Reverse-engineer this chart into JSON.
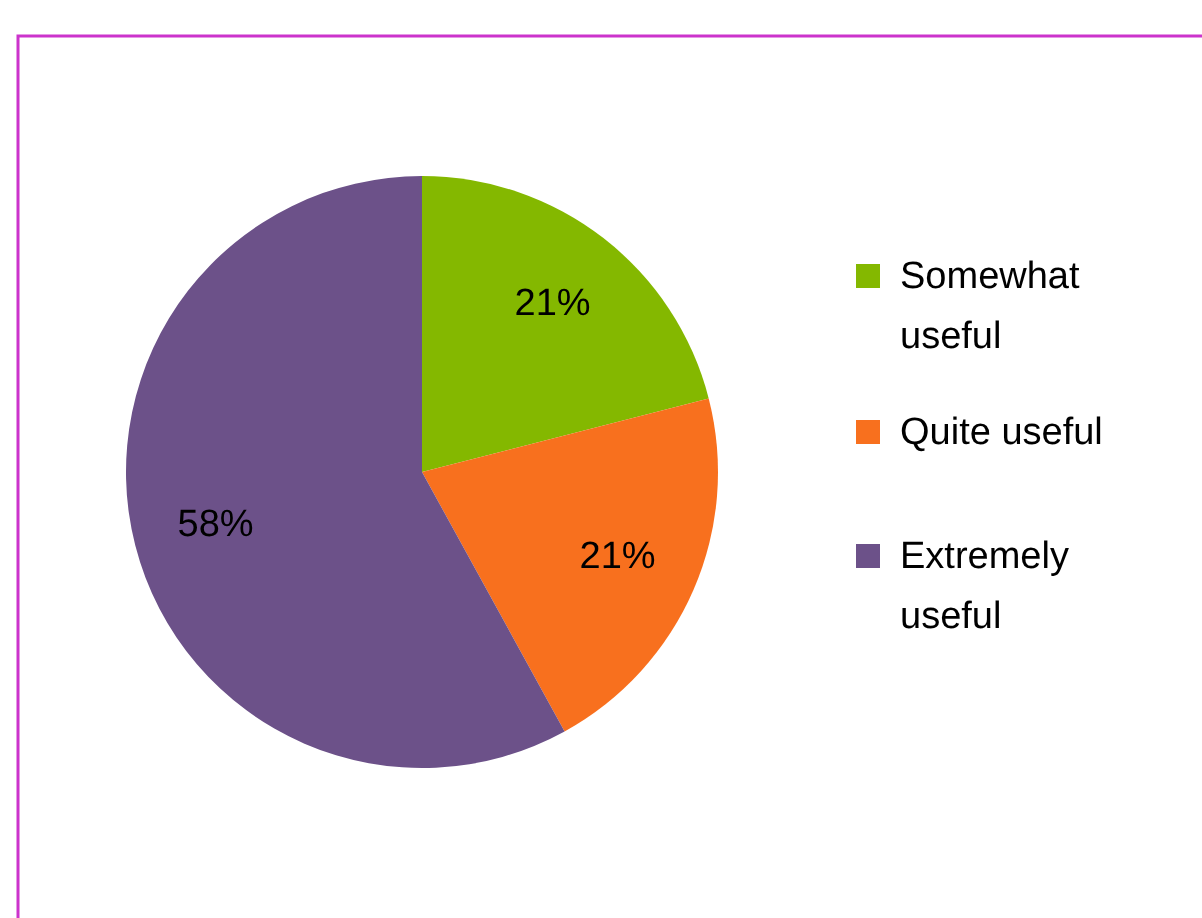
{
  "chart_data": {
    "type": "pie",
    "categories": [
      "Somewhat useful",
      "Quite useful",
      "Extremely useful"
    ],
    "values": [
      21,
      21,
      58
    ],
    "colors": [
      "#84b800",
      "#f8701e",
      "#6c5189"
    ],
    "value_labels": [
      "21%",
      "21%",
      "58%"
    ],
    "legend": "right"
  }
}
